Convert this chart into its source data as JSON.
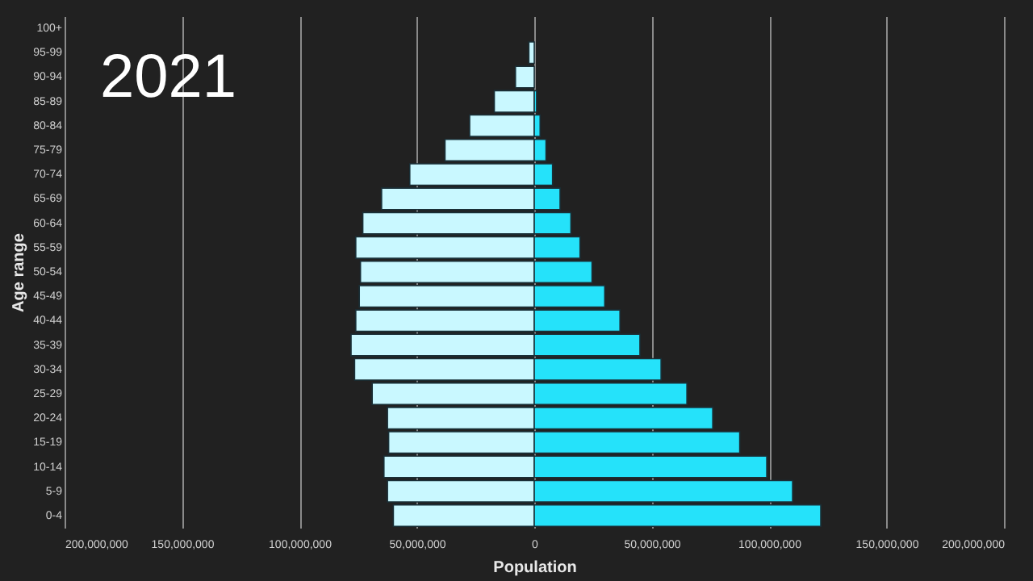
{
  "chart_data": {
    "type": "bar",
    "orientation": "horizontal",
    "xlabel": "Population",
    "ylabel": "Age range",
    "annotations": [
      "2021"
    ],
    "categories": [
      "100+",
      "95-99",
      "90-94",
      "85-89",
      "80-84",
      "75-79",
      "70-74",
      "65-69",
      "60-64",
      "55-59",
      "50-54",
      "45-49",
      "40-44",
      "35-39",
      "30-34",
      "25-29",
      "20-24",
      "15-19",
      "10-14",
      "5-9",
      "0-4"
    ],
    "series": [
      {
        "color": "#c9f8ff",
        "values": [
          null,
          -2300000,
          -8000000,
          -17000000,
          -27500000,
          -38000000,
          -53000000,
          -65000000,
          -73000000,
          -76000000,
          -74000000,
          -74500000,
          -76000000,
          -78000000,
          -76500000,
          -69000000,
          -62500000,
          -62000000,
          -64000000,
          -62500000,
          -60000000
        ]
      },
      {
        "color": "#25e2fa",
        "values": [
          null,
          null,
          null,
          1000000,
          2500000,
          5000000,
          7800000,
          11000000,
          15600000,
          19500000,
          24600000,
          30000000,
          36500000,
          45000000,
          54000000,
          65000000,
          76000000,
          87500000,
          99000000,
          110000000,
          122000000
        ]
      }
    ],
    "xlim": [
      -200000000,
      200000000
    ],
    "xticks": [
      {
        "value": -200000000,
        "label": "200,000,000"
      },
      {
        "value": -150000000,
        "label": "150,000,000"
      },
      {
        "value": -100000000,
        "label": "100,000,000"
      },
      {
        "value": -50000000,
        "label": "50,000,000"
      },
      0,
      {
        "value": 50000000,
        "label": "50,000,000"
      },
      {
        "value": 100000000,
        "label": "100,000,000"
      },
      {
        "value": 150000000,
        "label": "150,000,000"
      },
      {
        "value": 200000000,
        "label": "200,000,000"
      }
    ],
    "stacked": true,
    "grid": "x"
  }
}
